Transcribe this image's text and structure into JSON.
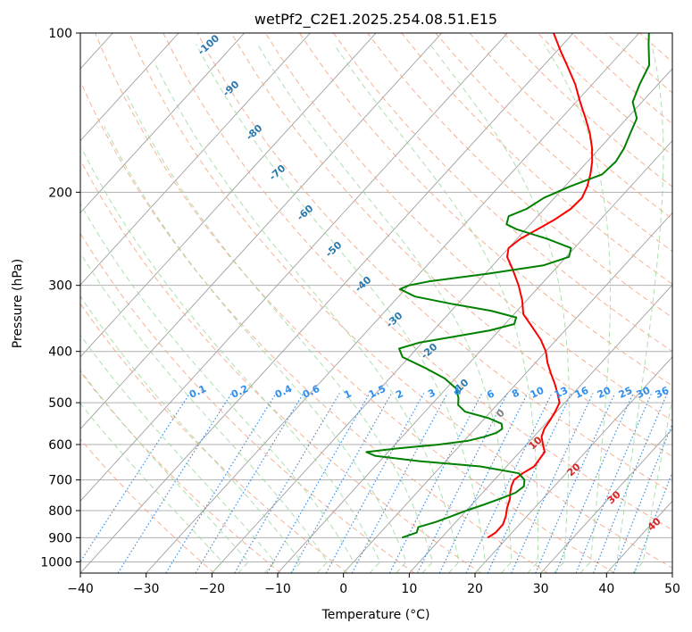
{
  "chart_data": {
    "type": "line",
    "subtype": "skew-t log-p",
    "title": "wetPf2_C2E1.2025.254.08.51.E15",
    "xlabel": "Temperature (°C)",
    "ylabel": "Pressure (hPa)",
    "xlim": [
      -40,
      50
    ],
    "ylim": [
      1050,
      100
    ],
    "y_scale": "log",
    "x_ticks": [
      -40,
      -30,
      -20,
      -10,
      0,
      10,
      20,
      30,
      40,
      50
    ],
    "x_tick_labels": [
      "−40",
      "−30",
      "−20",
      "−10",
      "0",
      "10",
      "20",
      "30",
      "40",
      "50"
    ],
    "y_ticks": [
      100,
      200,
      300,
      400,
      500,
      600,
      700,
      800,
      900,
      1000
    ],
    "y_tick_labels": [
      "100",
      "200",
      "300",
      "400",
      "500",
      "600",
      "700",
      "800",
      "900",
      "1000"
    ],
    "grid": true,
    "colors": {
      "temperature": "#ff0000",
      "dewpoint": "#008000",
      "grid": "#b0b0b0",
      "skewed_isotherms": "#a0a0a0",
      "dry_adiabats": "#f4a582",
      "moist_adiabats": "#98d898",
      "mixing_ratio": "#3a8fe0",
      "isotherm_labels": "#2a7ab0",
      "moist_labels": "#d62728",
      "mixing_labels": "#2f8fef"
    },
    "series": [
      {
        "key": "temperature",
        "p": [
          900,
          880,
          850,
          820,
          790,
          760,
          740,
          720,
          700,
          680,
          660,
          640,
          620,
          600,
          580,
          560,
          540,
          520,
          500,
          480,
          460,
          440,
          420,
          400,
          380,
          360,
          340,
          320,
          300,
          280,
          265,
          255,
          245,
          235,
          225,
          215,
          205,
          195,
          185,
          175,
          165,
          155,
          145,
          135,
          125,
          115,
          108,
          100
        ],
        "t": [
          17,
          17.5,
          17.5,
          16.8,
          15.8,
          15.0,
          14.2,
          13.5,
          13.0,
          13.4,
          14.2,
          14.0,
          13.8,
          12.5,
          11.2,
          10.5,
          10.2,
          9.8,
          9.2,
          7.6,
          5.8,
          3.8,
          1.8,
          0.0,
          -2.4,
          -5.4,
          -8.6,
          -10.7,
          -13.3,
          -16.4,
          -19.0,
          -20.0,
          -19.5,
          -18.2,
          -16.9,
          -16.0,
          -15.8,
          -16.6,
          -17.8,
          -19.3,
          -21.2,
          -23.5,
          -26.3,
          -29.4,
          -32.6,
          -36.5,
          -39.5,
          -43.0
        ]
      },
      {
        "key": "dewpoint",
        "p": [
          900,
          880,
          860,
          840,
          820,
          800,
          780,
          760,
          740,
          720,
          700,
          680,
          660,
          645,
          630,
          620,
          610,
          600,
          590,
          580,
          570,
          560,
          548,
          535,
          520,
          505,
          490,
          470,
          450,
          430,
          410,
          395,
          385,
          375,
          365,
          355,
          345,
          335,
          325,
          315,
          305,
          300,
          295,
          285,
          275,
          265,
          255,
          245,
          235,
          230,
          222,
          215,
          205,
          195,
          185,
          175,
          165,
          155,
          145,
          135,
          125,
          115,
          105,
          100
        ],
        "t": [
          4,
          5.5,
          5,
          7,
          8.5,
          10,
          11.8,
          13.5,
          15.0,
          15.4,
          14.6,
          12.8,
          6.0,
          -4.0,
          -11.5,
          -13.3,
          -9.0,
          -3.3,
          0.6,
          2.5,
          3.8,
          4.1,
          3.3,
          0.6,
          -3.9,
          -5.9,
          -6.8,
          -8.5,
          -11.6,
          -16.0,
          -21.0,
          -22.7,
          -20.5,
          -16.0,
          -11.4,
          -8.6,
          -9.2,
          -14.0,
          -21.0,
          -27.5,
          -30.8,
          -30.0,
          -27.5,
          -19.5,
          -12.3,
          -9.6,
          -10.5,
          -15.4,
          -21.4,
          -23.6,
          -24.4,
          -22.7,
          -21.6,
          -19.2,
          -16.0,
          -15.7,
          -16.3,
          -17.4,
          -18.5,
          -21.4,
          -22.8,
          -24.0,
          -27.0,
          -28.5
        ]
      }
    ],
    "isotherm_labels": [
      "-100",
      "-90",
      "-80",
      "-70",
      "-60",
      "-50",
      "-40",
      "-30",
      "-20",
      "-10"
    ],
    "moist_adiabat_labels": [
      "0",
      "10",
      "20",
      "30",
      "40"
    ],
    "mixing_ratio_labels": [
      "0.1",
      "0.2",
      "0.4",
      "0.6",
      "1",
      "1.5",
      "2",
      "3",
      "4",
      "6",
      "8",
      "10",
      "13",
      "16",
      "20",
      "25",
      "30",
      "36"
    ]
  }
}
